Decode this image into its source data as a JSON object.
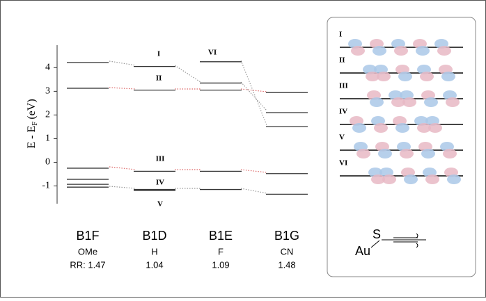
{
  "chart_data": {
    "type": "levels",
    "ylabel_main": "E - E",
    "ylabel_sub": "F",
    "ylabel_unit": "(eV)",
    "ylim": [
      -1.75,
      4.95
    ],
    "yticks": [
      -1,
      0,
      1,
      2,
      3,
      4
    ],
    "categories": [
      "B1F",
      "B1D",
      "B1E",
      "B1G"
    ],
    "substituents": [
      "OMe",
      "H",
      "F",
      "CN"
    ],
    "rr_labels": [
      "RR: 1.47",
      "1.04",
      "1.09",
      "1.48"
    ],
    "levels": [
      [
        4.22,
        3.13,
        -0.25,
        -0.72,
        -0.93,
        -1.05
      ],
      [
        4.05,
        3.05,
        -0.38,
        -1.15,
        -1.2
      ],
      [
        4.25,
        3.35,
        3.05,
        -0.38,
        -1.15
      ],
      [
        2.95,
        2.1,
        1.5,
        -0.48,
        -1.35
      ]
    ],
    "color": "#333333",
    "annotations": [
      "I",
      "II",
      "III",
      "IV",
      "V",
      "VI"
    ],
    "orbital_labels": [
      "I",
      "II",
      "III",
      "IV",
      "V",
      "VI"
    ],
    "structure": {
      "au": "Au",
      "s": "S"
    }
  }
}
